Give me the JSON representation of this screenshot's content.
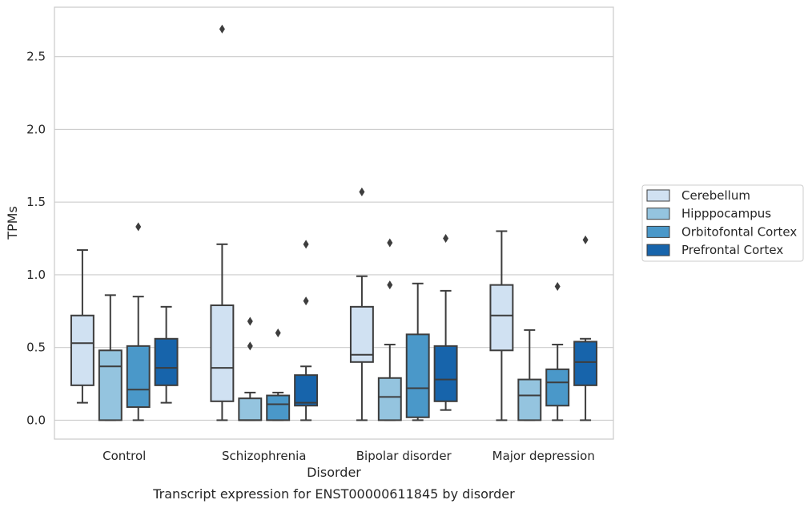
{
  "chart_data": {
    "type": "box",
    "caption": "Transcript expression for ENST00000611845 by disorder",
    "xlabel": "Disorder",
    "ylabel": "TPMs",
    "ylim": [
      -0.13,
      2.84
    ],
    "yticks": [
      0.0,
      0.5,
      1.0,
      1.5,
      2.0,
      2.5
    ],
    "ytick_labels": [
      "0.0",
      "0.5",
      "1.0",
      "1.5",
      "2.0",
      "2.5"
    ],
    "grid": "horizontal",
    "legend_position": "right",
    "categories": [
      "Control",
      "Schizophrenia",
      "Bipolar disorder",
      "Major depression"
    ],
    "series": [
      {
        "name": "Cerebellum",
        "color": "#d0e1f2",
        "boxes": [
          {
            "whislo": 0.12,
            "q1": 0.24,
            "med": 0.53,
            "q3": 0.72,
            "whishi": 1.17,
            "fliers": []
          },
          {
            "whislo": 0.0,
            "q1": 0.13,
            "med": 0.36,
            "q3": 0.79,
            "whishi": 1.21,
            "fliers": [
              2.69
            ]
          },
          {
            "whislo": 0.0,
            "q1": 0.4,
            "med": 0.45,
            "q3": 0.78,
            "whishi": 0.99,
            "fliers": [
              1.57
            ]
          },
          {
            "whislo": 0.0,
            "q1": 0.48,
            "med": 0.72,
            "q3": 0.93,
            "whishi": 1.3,
            "fliers": []
          }
        ]
      },
      {
        "name": "Hipppocampus",
        "color": "#94c4df",
        "boxes": [
          {
            "whislo": 0.0,
            "q1": 0.0,
            "med": 0.37,
            "q3": 0.48,
            "whishi": 0.86,
            "fliers": []
          },
          {
            "whislo": 0.0,
            "q1": 0.0,
            "med": 0.0,
            "q3": 0.15,
            "whishi": 0.19,
            "fliers": [
              0.51,
              0.68
            ]
          },
          {
            "whislo": 0.0,
            "q1": 0.0,
            "med": 0.16,
            "q3": 0.29,
            "whishi": 0.52,
            "fliers": [
              0.93,
              1.22
            ]
          },
          {
            "whislo": 0.0,
            "q1": 0.0,
            "med": 0.17,
            "q3": 0.28,
            "whishi": 0.62,
            "fliers": []
          }
        ]
      },
      {
        "name": "Orbitofontal Cortex",
        "color": "#4a98c9",
        "boxes": [
          {
            "whislo": 0.0,
            "q1": 0.09,
            "med": 0.21,
            "q3": 0.51,
            "whishi": 0.85,
            "fliers": [
              1.33
            ]
          },
          {
            "whislo": 0.0,
            "q1": 0.0,
            "med": 0.11,
            "q3": 0.17,
            "whishi": 0.19,
            "fliers": [
              0.6
            ]
          },
          {
            "whislo": 0.0,
            "q1": 0.02,
            "med": 0.22,
            "q3": 0.59,
            "whishi": 0.94,
            "fliers": []
          },
          {
            "whislo": 0.0,
            "q1": 0.1,
            "med": 0.26,
            "q3": 0.35,
            "whishi": 0.52,
            "fliers": [
              0.92
            ]
          }
        ]
      },
      {
        "name": "Prefrontal Cortex",
        "color": "#1764ab",
        "boxes": [
          {
            "whislo": 0.12,
            "q1": 0.24,
            "med": 0.36,
            "q3": 0.56,
            "whishi": 0.78,
            "fliers": []
          },
          {
            "whislo": 0.0,
            "q1": 0.1,
            "med": 0.12,
            "q3": 0.31,
            "whishi": 0.37,
            "fliers": [
              0.82,
              1.21
            ]
          },
          {
            "whislo": 0.07,
            "q1": 0.13,
            "med": 0.28,
            "q3": 0.51,
            "whishi": 0.89,
            "fliers": [
              1.25
            ]
          },
          {
            "whislo": 0.0,
            "q1": 0.24,
            "med": 0.4,
            "q3": 0.54,
            "whishi": 0.56,
            "fliers": [
              1.24
            ]
          }
        ]
      }
    ]
  }
}
